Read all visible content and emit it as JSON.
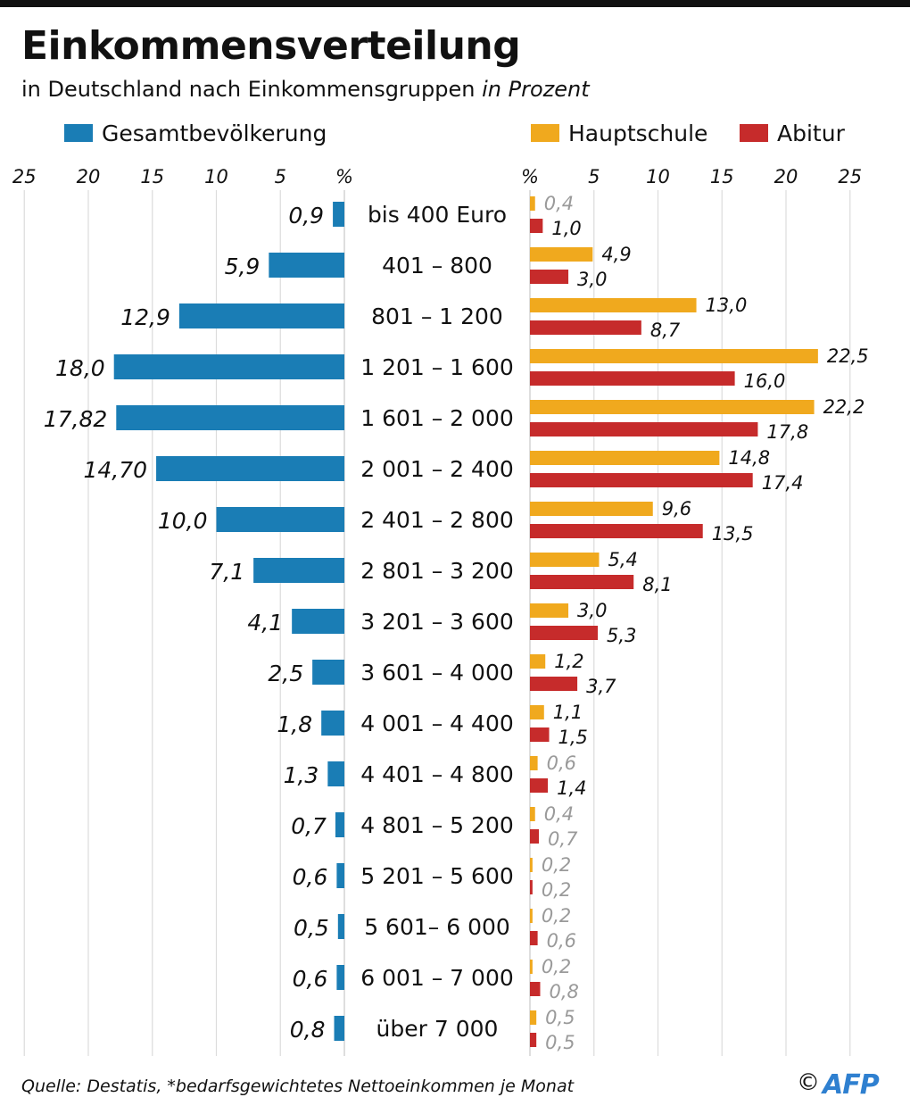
{
  "title": "Einkommensverteilung",
  "subtitle": "in Deutschland nach Einkommensgruppen",
  "subtitle_unit": "in Prozent",
  "legend": [
    {
      "label": "Gesamtbevölkerung",
      "color": "#1a7db5"
    },
    {
      "label": "Hauptschule",
      "color": "#f0a91e"
    },
    {
      "label": "Abitur",
      "color": "#c62b2b"
    }
  ],
  "footer": "Quelle: Destatis, *bedarfsgewichtetes Nettoeinkommen je Monat",
  "copyright": "©",
  "logo": "AFP",
  "chart_data": {
    "type": "bar",
    "orientation": "horizontal",
    "layout": "butterfly",
    "categories": [
      "bis 400 Euro",
      "401 – 800",
      "801 – 1 200",
      "1 201 – 1 600",
      "1 601 – 2 000",
      "2 001 – 2 400",
      "2 401 – 2 800",
      "2 801 – 3 200",
      "3 201 – 3 600",
      "3 601 – 4 000",
      "4 001 – 4 400",
      "4 401 – 4 800",
      "4 801 – 5 200",
      "5 201 – 5 600",
      "5 601– 6 000",
      "6 001 – 7 000",
      "über 7 000"
    ],
    "left_axis": {
      "ticks": [
        "25",
        "20",
        "15",
        "10",
        "5",
        "%"
      ],
      "tick_values": [
        25,
        20,
        15,
        10,
        5,
        0
      ],
      "range": [
        0,
        25
      ]
    },
    "right_axis": {
      "ticks": [
        "%",
        "5",
        "10",
        "15",
        "20",
        "25"
      ],
      "tick_values": [
        0,
        5,
        10,
        15,
        20,
        25
      ],
      "range": [
        0,
        25
      ]
    },
    "grid": true,
    "series": [
      {
        "name": "Gesamtbevölkerung",
        "side": "left",
        "color": "#1a7db5",
        "values": [
          0.9,
          5.9,
          12.9,
          18.0,
          17.82,
          14.7,
          10.0,
          7.1,
          4.1,
          2.5,
          1.8,
          1.3,
          0.7,
          0.6,
          0.5,
          0.6,
          0.8
        ],
        "labels": [
          "0,9",
          "5,9",
          "12,9",
          "18,0",
          "17,82",
          "14,70",
          "10,0",
          "7,1",
          "4,1",
          "2,5",
          "1,8",
          "1,3",
          "0,7",
          "0,6",
          "0,5",
          "0,6",
          "0,8"
        ]
      },
      {
        "name": "Hauptschule",
        "side": "right",
        "color": "#f0a91e",
        "values": [
          0.4,
          4.9,
          13.0,
          22.5,
          22.2,
          14.8,
          9.6,
          5.4,
          3.0,
          1.2,
          1.1,
          0.6,
          0.4,
          0.2,
          0.2,
          0.2,
          0.5
        ],
        "labels": [
          "0,4",
          "4,9",
          "13,0",
          "22,5",
          "22,2",
          "14,8",
          "9,6",
          "5,4",
          "3,0",
          "1,2",
          "1,1",
          "0,6",
          "0,4",
          "0,2",
          "0,2",
          "0,2",
          "0,5"
        ]
      },
      {
        "name": "Abitur",
        "side": "right",
        "color": "#c62b2b",
        "values": [
          1.0,
          3.0,
          8.7,
          16.0,
          17.8,
          17.4,
          13.5,
          8.1,
          5.3,
          3.7,
          1.5,
          1.4,
          0.7,
          0.2,
          0.6,
          0.8,
          0.5
        ],
        "labels": [
          "1,0",
          "3,0",
          "8,7",
          "16,0",
          "17,8",
          "17,4",
          "13,5",
          "8,1",
          "5,3",
          "3,7",
          "1,5",
          "1,4",
          "0,7",
          "0,2",
          "0,6",
          "0,8",
          "0,5"
        ]
      }
    ]
  }
}
